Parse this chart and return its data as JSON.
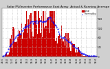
{
  "title": "Solar PV/Inverter Performance East Array  Actual & Running Average Power Output",
  "title_fontsize": 3.2,
  "bg_color": "#d0d0d0",
  "plot_bg_color": "#ffffff",
  "bar_color": "#cc0000",
  "avg_color": "#0000ff",
  "grid_color": "#bbbbbb",
  "n_bars": 100,
  "peak_index": 38,
  "sigma": 22,
  "y_max": 1900,
  "legend_items": [
    "Actual",
    "Running Avg"
  ],
  "legend_colors": [
    "#cc0000",
    "#0000ff"
  ]
}
